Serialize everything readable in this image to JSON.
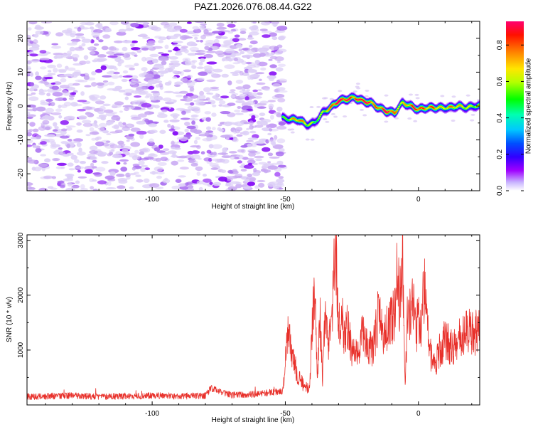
{
  "figure_title": "PAZ1.2026.076.08.44.G22",
  "chart_data": [
    {
      "type": "heatmap",
      "title": "PAZ1.2026.076.08.44.G22",
      "xlabel": "Height of straight line (km)",
      "ylabel": "Frequency (Hz)",
      "xlim": [
        -147,
        23
      ],
      "ylim": [
        -25,
        25
      ],
      "xticks": [
        -100,
        -50,
        0
      ],
      "yticks": [
        -20,
        -10,
        0,
        10,
        20
      ],
      "noise_region": {
        "x_from": -147,
        "x_to": -51,
        "description": "scattered low-amplitude noise across all frequencies"
      },
      "signal_track": {
        "x": [
          -51,
          -48,
          -45,
          -42,
          -39,
          -36,
          -33,
          -30,
          -27,
          -24,
          -21,
          -18,
          -15,
          -12,
          -9,
          -6,
          -3,
          0,
          3,
          6,
          9,
          12,
          15,
          18,
          21,
          23
        ],
        "y": [
          -3.5,
          -4,
          -4,
          -5.5,
          -5,
          -2,
          -0.5,
          1.5,
          2,
          2.5,
          1.5,
          1,
          -0.5,
          -1.5,
          -2,
          1,
          0,
          -1,
          -0.5,
          -0.5,
          -0.5,
          -0.5,
          0,
          -0.5,
          0,
          0
        ],
        "peak_amplitude": [
          0.45,
          0.6,
          0.75,
          0.6,
          0.5,
          0.55,
          0.7,
          0.95,
          0.85,
          0.75,
          0.95,
          0.8,
          0.7,
          0.95,
          0.7,
          0.6,
          0.75,
          0.85,
          0.7,
          0.75,
          0.6,
          0.7,
          0.65,
          0.6,
          0.55,
          0.6
        ]
      },
      "colorbar": {
        "label": "Normalized spectral amplitude",
        "range": [
          0,
          0.93
        ],
        "ticks": [
          "0.0",
          "0.2",
          "0.4",
          "0.6",
          "0.8"
        ],
        "colors": [
          "#ffffff",
          "#d6c8f2",
          "#9a55f0",
          "#7a00ff",
          "#0000ff",
          "#00c8ff",
          "#00ff00",
          "#ccff00",
          "#ffe600",
          "#ff8000",
          "#ff0000",
          "#ff0060"
        ]
      }
    },
    {
      "type": "line",
      "xlabel": "Height of straight line (km)",
      "ylabel": "SNR (10 * v/v)",
      "xlim": [
        -147,
        23
      ],
      "ylim": [
        0,
        3100
      ],
      "xticks": [
        -100,
        -50,
        0
      ],
      "yticks": [
        1000,
        2000,
        3000
      ],
      "color": "#e8302a",
      "series": [
        {
          "name": "SNR",
          "x": [
            -147,
            -140,
            -130,
            -120,
            -110,
            -100,
            -90,
            -80,
            -78,
            -70,
            -60,
            -55,
            -51,
            -49,
            -47,
            -45,
            -43,
            -41,
            -39,
            -38,
            -37,
            -36,
            -35,
            -34,
            -33,
            -32,
            -31,
            -30,
            -29,
            -28,
            -27,
            -25,
            -23,
            -21,
            -19,
            -17,
            -15,
            -13,
            -11,
            -9,
            -8,
            -7,
            -6,
            -5,
            -4,
            -3,
            -2,
            -1,
            0,
            1,
            2,
            4,
            6,
            8,
            10,
            13,
            16,
            19,
            21,
            23
          ],
          "y": [
            150,
            160,
            170,
            150,
            160,
            170,
            160,
            170,
            300,
            180,
            200,
            230,
            250,
            1300,
            800,
            500,
            350,
            300,
            2200,
            400,
            1600,
            500,
            1700,
            1000,
            1400,
            2000,
            3050,
            1300,
            1900,
            1200,
            1500,
            1000,
            900,
            1300,
            1100,
            1000,
            1700,
            1200,
            1500,
            1600,
            2300,
            1900,
            2850,
            300,
            1800,
            1600,
            1900,
            1300,
            1600,
            1300,
            2200,
            1000,
            700,
            1000,
            1200,
            1000,
            1250,
            1350,
            1300,
            1400
          ]
        }
      ]
    }
  ]
}
